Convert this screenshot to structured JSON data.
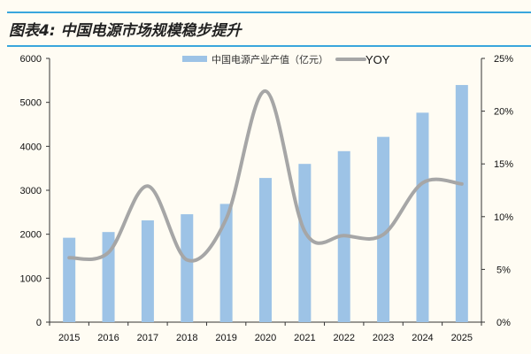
{
  "header": {
    "title": "图表4:  中国电源市场规模稳步提升"
  },
  "chart_data": {
    "type": "bar+line",
    "title": "",
    "categories": [
      "2015",
      "2016",
      "2017",
      "2018",
      "2019",
      "2020",
      "2021",
      "2022",
      "2023",
      "2024",
      "2025"
    ],
    "series": [
      {
        "name": "中国电源产业产值（亿元）",
        "type": "bar",
        "axis": "left",
        "color": "#9dc3e6",
        "values": [
          1920,
          2050,
          2315,
          2455,
          2690,
          3280,
          3600,
          3890,
          4215,
          4765,
          5395
        ]
      },
      {
        "name": "YOY",
        "type": "line",
        "axis": "right",
        "color": "#a6a6a6",
        "smooth": true,
        "values": [
          6.1,
          6.6,
          12.9,
          5.9,
          9.8,
          21.9,
          8.6,
          8.2,
          8.3,
          13.2,
          13.1
        ]
      }
    ],
    "left_axis": {
      "range": [
        0,
        6000
      ],
      "ticks": [
        "0",
        "1000",
        "2000",
        "3000",
        "4000",
        "5000",
        "6000"
      ]
    },
    "right_axis": {
      "range": [
        0,
        25
      ],
      "unit": "%",
      "ticks": [
        "0%",
        "5%",
        "10%",
        "15%",
        "20%",
        "25%"
      ]
    },
    "grid": false,
    "legend": "top"
  }
}
